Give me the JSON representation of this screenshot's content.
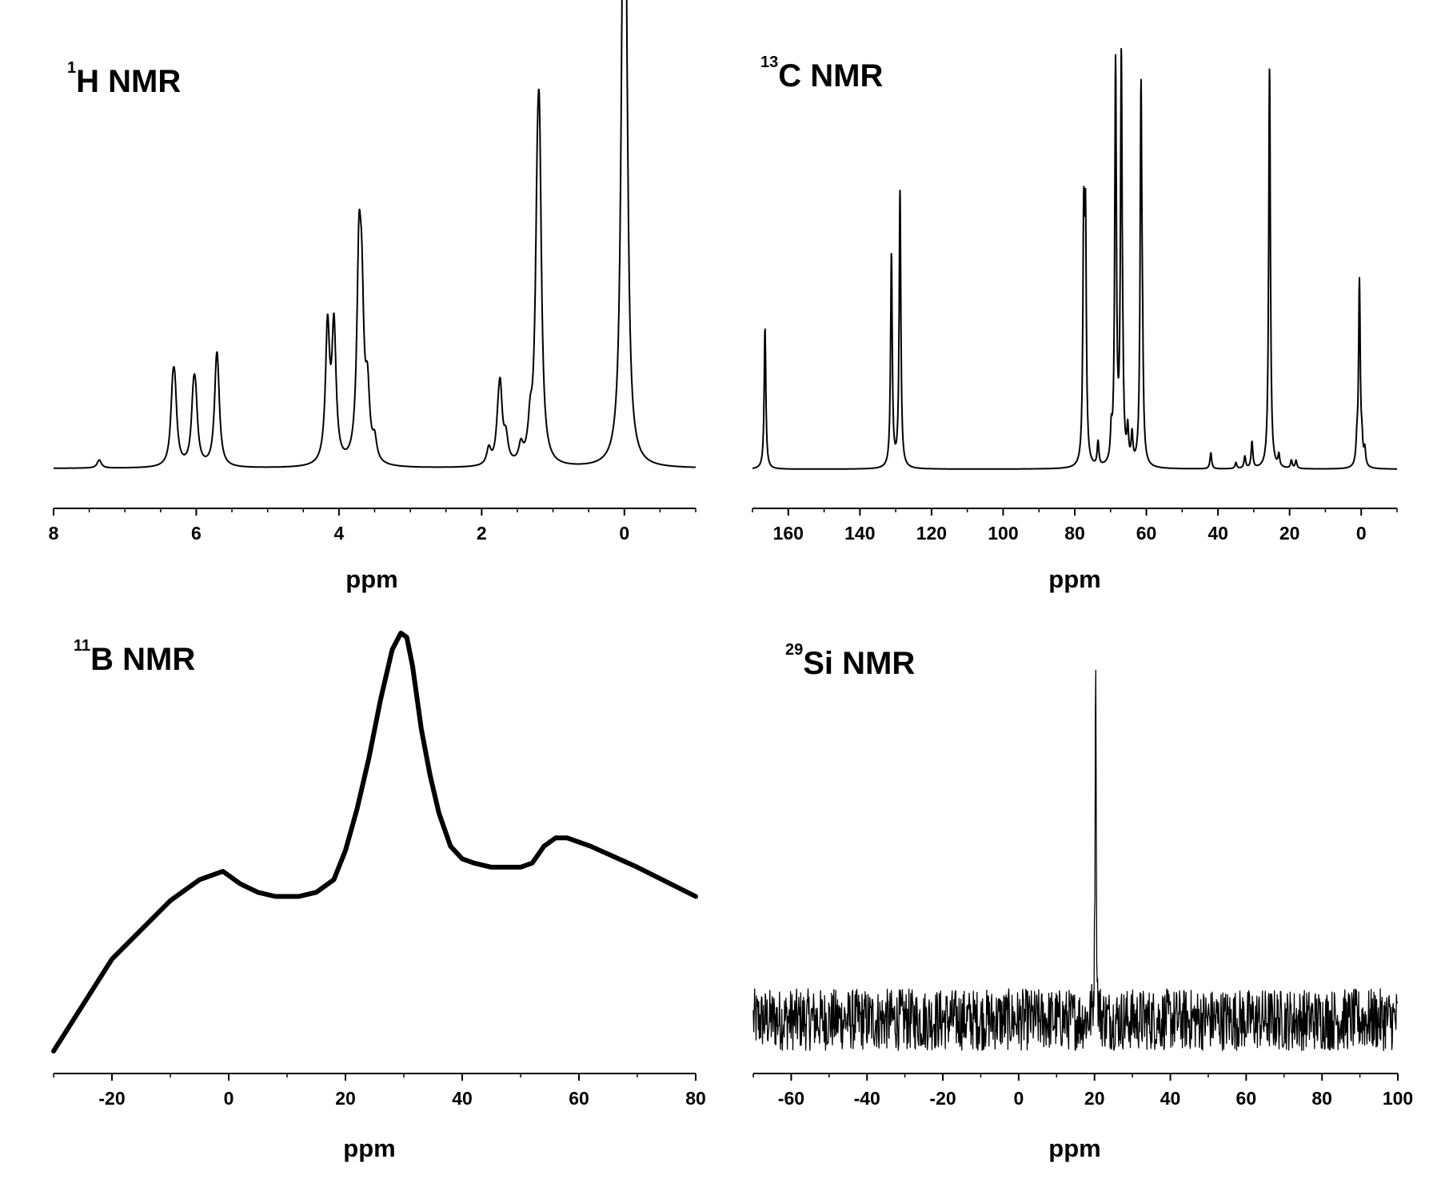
{
  "chart_data": [
    {
      "type": "line",
      "title": {
        "superscript": "1",
        "text": "H NMR"
      },
      "xlabel": "ppm",
      "ylabel": "",
      "xlim": [
        8,
        -1
      ],
      "x_direction": "reversed",
      "x_ticks": [
        8,
        6,
        4,
        2,
        0
      ],
      "grid": false,
      "y_axis_shown": false,
      "peaks": [
        {
          "x": 7.36,
          "y": 0.02
        },
        {
          "x": 6.33,
          "y": 0.145
        },
        {
          "x": 6.3,
          "y": 0.145
        },
        {
          "x": 6.04,
          "y": 0.135
        },
        {
          "x": 6.01,
          "y": 0.13
        },
        {
          "x": 5.72,
          "y": 0.155
        },
        {
          "x": 5.7,
          "y": 0.15
        },
        {
          "x": 4.16,
          "y": 0.33
        },
        {
          "x": 4.07,
          "y": 0.33
        },
        {
          "x": 3.72,
          "y": 0.46
        },
        {
          "x": 3.68,
          "y": 0.33
        },
        {
          "x": 3.6,
          "y": 0.16
        },
        {
          "x": 3.5,
          "y": 0.05
        },
        {
          "x": 1.9,
          "y": 0.04
        },
        {
          "x": 1.77,
          "y": 0.06
        },
        {
          "x": 1.74,
          "y": 0.17
        },
        {
          "x": 1.66,
          "y": 0.06
        },
        {
          "x": 1.45,
          "y": 0.04
        },
        {
          "x": 1.32,
          "y": 0.08
        },
        {
          "x": 1.22,
          "y": 0.44
        },
        {
          "x": 1.19,
          "y": 0.64
        },
        {
          "x": 0.02,
          "y": 1.0
        },
        {
          "x": -0.02,
          "y": 0.95
        }
      ]
    },
    {
      "type": "line",
      "title": {
        "superscript": "13",
        "text": "C NMR"
      },
      "xlabel": "ppm",
      "ylabel": "",
      "xlim": [
        170,
        -10
      ],
      "x_direction": "reversed",
      "x_ticks": [
        160,
        140,
        120,
        100,
        80,
        60,
        40,
        20,
        0
      ],
      "grid": false,
      "y_axis_shown": false,
      "peaks": [
        {
          "x": 166.5,
          "y": 0.35
        },
        {
          "x": 131.2,
          "y": 0.53
        },
        {
          "x": 128.8,
          "y": 0.69
        },
        {
          "x": 77.5,
          "y": 0.56
        },
        {
          "x": 77.0,
          "y": 0.56
        },
        {
          "x": 73.5,
          "y": 0.06
        },
        {
          "x": 69.8,
          "y": 0.07
        },
        {
          "x": 68.6,
          "y": 0.99
        },
        {
          "x": 67.0,
          "y": 0.99
        },
        {
          "x": 66.6,
          "y": 0.08
        },
        {
          "x": 65.2,
          "y": 0.08
        },
        {
          "x": 64.0,
          "y": 0.07
        },
        {
          "x": 61.5,
          "y": 0.9
        },
        {
          "x": 61.1,
          "y": 0.19
        },
        {
          "x": 42.0,
          "y": 0.04
        },
        {
          "x": 35.0,
          "y": 0.015
        },
        {
          "x": 32.5,
          "y": 0.03
        },
        {
          "x": 30.5,
          "y": 0.065
        },
        {
          "x": 25.6,
          "y": 1.0
        },
        {
          "x": 23.0,
          "y": 0.03
        },
        {
          "x": 19.5,
          "y": 0.02
        },
        {
          "x": 18.2,
          "y": 0.02
        },
        {
          "x": 1.2,
          "y": 0.05
        },
        {
          "x": 0.5,
          "y": 0.46
        },
        {
          "x": -0.2,
          "y": 0.05
        },
        {
          "x": -1.0,
          "y": 0.04
        }
      ]
    },
    {
      "type": "line",
      "title": {
        "superscript": "11",
        "text": "B NMR"
      },
      "xlabel": "ppm",
      "ylabel": "",
      "xlim": [
        -30,
        80
      ],
      "x_ticks": [
        -20,
        0,
        20,
        40,
        60,
        80
      ],
      "grid": false,
      "y_axis_shown": false,
      "series": [
        {
          "x": [
            -30,
            -20,
            -10,
            -5,
            -1,
            2,
            5,
            8,
            12,
            15,
            18,
            20,
            22,
            24,
            26,
            28,
            29.5,
            30.5,
            31.5,
            33,
            34.5,
            36,
            38,
            40,
            42,
            45,
            48,
            50,
            52,
            54,
            56,
            58,
            62,
            70,
            80
          ],
          "y": [
            0.0,
            0.22,
            0.36,
            0.41,
            0.43,
            0.4,
            0.38,
            0.37,
            0.37,
            0.38,
            0.41,
            0.48,
            0.58,
            0.7,
            0.84,
            0.96,
            1.0,
            0.99,
            0.92,
            0.77,
            0.66,
            0.57,
            0.49,
            0.46,
            0.45,
            0.44,
            0.44,
            0.44,
            0.45,
            0.49,
            0.51,
            0.51,
            0.49,
            0.44,
            0.37
          ]
        }
      ]
    },
    {
      "type": "line",
      "title": {
        "superscript": "29",
        "text": "Si NMR"
      },
      "xlabel": "ppm",
      "ylabel": "",
      "xlim": [
        -70,
        100
      ],
      "x_ticks": [
        -60,
        -40,
        -20,
        0,
        20,
        40,
        60,
        80,
        100
      ],
      "grid": false,
      "y_axis_shown": false,
      "baseline_noise": {
        "x_range": [
          -70,
          100
        ],
        "level": 0.08,
        "amplitude": 0.07
      },
      "peaks": [
        {
          "x": 20.3,
          "y": 1.0
        }
      ]
    }
  ]
}
